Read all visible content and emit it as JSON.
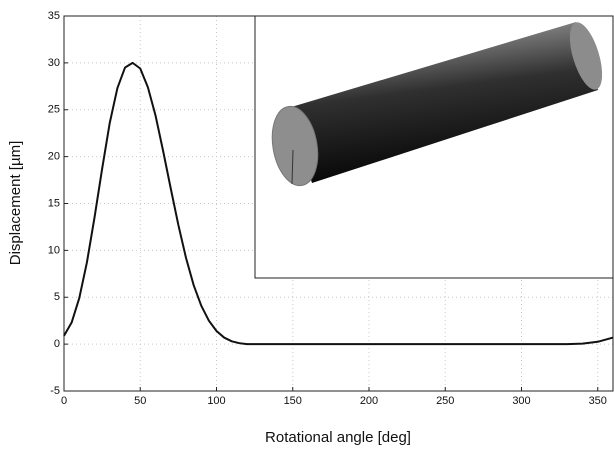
{
  "chart_data": {
    "type": "line",
    "x_label": "Rotational angle [deg]",
    "y_label": "Displacement [µm]",
    "x": [
      0,
      5,
      10,
      15,
      20,
      25,
      30,
      35,
      40,
      45,
      50,
      55,
      60,
      65,
      70,
      75,
      80,
      85,
      90,
      95,
      100,
      105,
      110,
      115,
      120,
      150,
      200,
      250,
      300,
      330,
      340,
      350,
      360
    ],
    "values": [
      0.9,
      2.3,
      4.9,
      8.7,
      13.5,
      18.7,
      23.6,
      27.3,
      29.5,
      30,
      29.4,
      27.4,
      24.4,
      20.6,
      16.6,
      12.7,
      9.2,
      6.3,
      4.1,
      2.5,
      1.4,
      0.7,
      0.3,
      0.1,
      0,
      0,
      0,
      0,
      0,
      0,
      0.05,
      0.25,
      0.7
    ],
    "color": "#111111",
    "xlim": [
      0,
      360
    ],
    "xticks": [
      0,
      50,
      100,
      150,
      200,
      250,
      300,
      350
    ],
    "ylim": [
      -5,
      35
    ],
    "yticks": [
      -5,
      0,
      5,
      10,
      15,
      20,
      25,
      30,
      35
    ],
    "grid": true
  }
}
